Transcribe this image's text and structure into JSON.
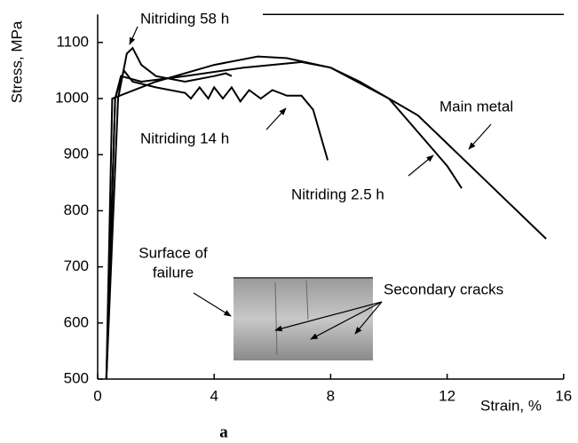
{
  "chart_data": {
    "type": "line",
    "ylabel": "Stress, MPa",
    "xlabel": "Strain, %",
    "caption": "a",
    "xlim": [
      0,
      16
    ],
    "ylim": [
      500,
      1150
    ],
    "xticks": [
      0,
      4,
      8,
      12,
      16
    ],
    "yticks": [
      500,
      600,
      700,
      800,
      900,
      1000,
      1100
    ],
    "annotations": [
      [
        "Surface of",
        "failure"
      ],
      [
        "Secondary cracks"
      ]
    ],
    "series": [
      {
        "name": "Nitriding 58 h",
        "color": "#000000",
        "x": [
          0.3,
          0.7,
          1.0,
          1.2,
          1.5,
          2.0,
          3.0,
          4.0,
          4.4,
          4.6
        ],
        "values": [
          500,
          1000,
          1080,
          1090,
          1060,
          1040,
          1030,
          1040,
          1045,
          1040
        ]
      },
      {
        "name": "Nitriding 14 h",
        "color": "#000000",
        "x": [
          0.3,
          0.6,
          0.9,
          1.2,
          2.0,
          3.0,
          3.2,
          3.5,
          3.8,
          4.0,
          4.3,
          4.6,
          4.9,
          5.2,
          5.6,
          6.0,
          6.5,
          7.0,
          7.4,
          7.9
        ],
        "values": [
          500,
          1000,
          1050,
          1030,
          1020,
          1010,
          1000,
          1020,
          1000,
          1020,
          1000,
          1020,
          995,
          1015,
          1000,
          1015,
          1005,
          1005,
          980,
          890
        ]
      },
      {
        "name": "Nitriding 2.5 h",
        "color": "#000000",
        "x": [
          0.3,
          0.6,
          0.8,
          1.5,
          3.0,
          5.0,
          7.0,
          8.0,
          9.0,
          10.0,
          11.0,
          12.0,
          12.5
        ],
        "values": [
          500,
          1000,
          1040,
          1030,
          1040,
          1055,
          1065,
          1055,
          1030,
          1000,
          940,
          880,
          840
        ]
      },
      {
        "name": "Main metal",
        "color": "#000000",
        "x": [
          0.3,
          0.5,
          1.0,
          2.0,
          4.0,
          5.5,
          6.5,
          8.0,
          10.0,
          11.0,
          12.0,
          13.0,
          14.0,
          15.4
        ],
        "values": [
          500,
          1000,
          1010,
          1030,
          1060,
          1075,
          1072,
          1055,
          1000,
          970,
          920,
          870,
          820,
          750
        ]
      }
    ]
  }
}
